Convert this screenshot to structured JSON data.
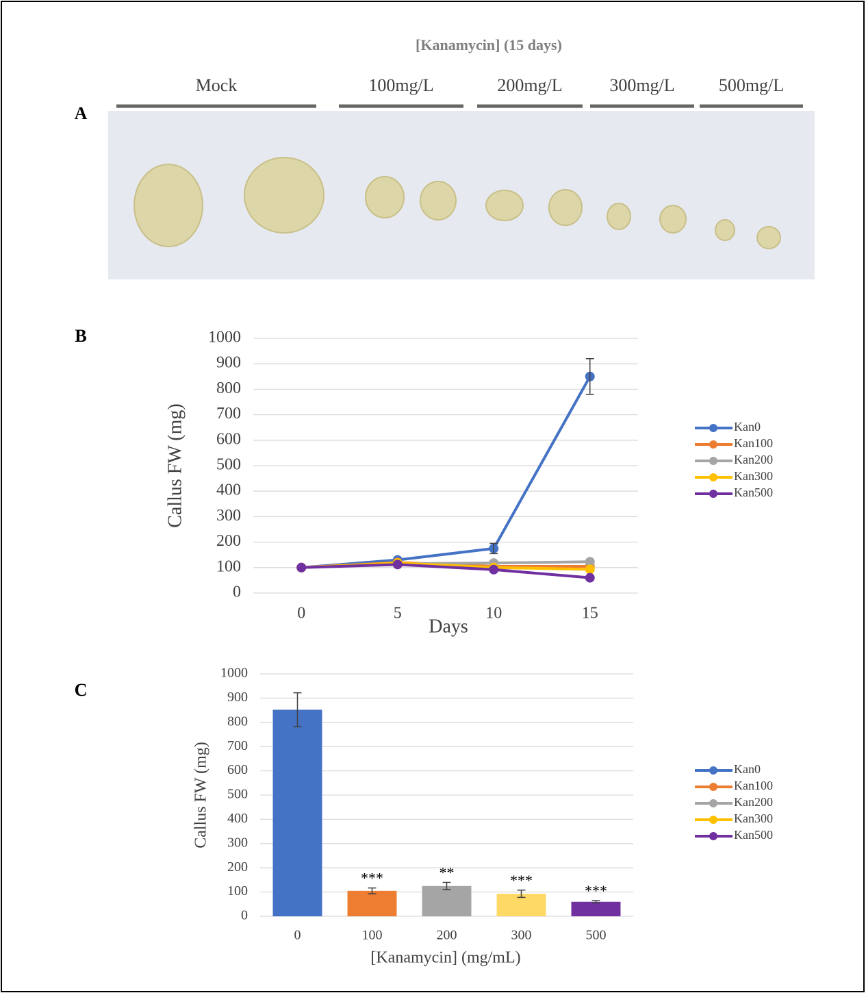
{
  "figure": {
    "panel_labels": [
      "A",
      "B",
      "C"
    ],
    "photo_title": "[Kanamycin] (15 days)",
    "groups": [
      "Mock",
      "100mg/L",
      "200mg/L",
      "300mg/L",
      "500mg/L"
    ]
  },
  "chart_data": [
    {
      "type": "line",
      "ylabel": "Callus FW (mg)",
      "xlabel": "Days",
      "x": [
        0,
        5,
        10,
        15
      ],
      "xlim": [
        -2.5,
        17.5
      ],
      "xticks": [
        0,
        5,
        10,
        15
      ],
      "ylim": [
        0,
        1000
      ],
      "yticks": [
        0,
        100,
        200,
        300,
        400,
        500,
        600,
        700,
        800,
        900,
        1000
      ],
      "grid": true,
      "series": [
        {
          "name": "Kan0",
          "color": "#4472c4",
          "values": [
            100,
            130,
            175,
            850
          ],
          "errors": [
            null,
            null,
            20,
            70
          ]
        },
        {
          "name": "Kan100",
          "color": "#ed7d31",
          "values": [
            100,
            120,
            105,
            105
          ]
        },
        {
          "name": "Kan200",
          "color": "#a5a5a5",
          "values": [
            100,
            115,
            118,
            123
          ]
        },
        {
          "name": "Kan300",
          "color": "#ffc000",
          "values": [
            100,
            118,
            100,
            93
          ]
        },
        {
          "name": "Kan500",
          "color": "#7030a0",
          "values": [
            100,
            112,
            92,
            60
          ]
        }
      ]
    },
    {
      "type": "bar",
      "ylabel": "Callus FW (mg)",
      "xlabel": "[Kanamycin] (mg/mL)",
      "categories": [
        "0",
        "100",
        "200",
        "300",
        "500"
      ],
      "values": [
        852,
        105,
        125,
        93,
        60
      ],
      "errors": [
        70,
        12,
        15,
        15,
        5
      ],
      "colors": [
        "#4472c4",
        "#ed7d31",
        "#a5a5a5",
        "#ffd966",
        "#7030a0"
      ],
      "annotations": [
        null,
        "***",
        "**",
        "***",
        "***"
      ],
      "ylim": [
        0,
        1000
      ],
      "yticks": [
        0,
        100,
        200,
        300,
        400,
        500,
        600,
        700,
        800,
        900,
        1000
      ],
      "grid": true,
      "legend": [
        {
          "name": "Kan0",
          "color": "#4472c4"
        },
        {
          "name": "Kan100",
          "color": "#ed7d31"
        },
        {
          "name": "Kan200",
          "color": "#a5a5a5"
        },
        {
          "name": "Kan300",
          "color": "#ffc000"
        },
        {
          "name": "Kan500",
          "color": "#7030a0"
        }
      ]
    }
  ]
}
